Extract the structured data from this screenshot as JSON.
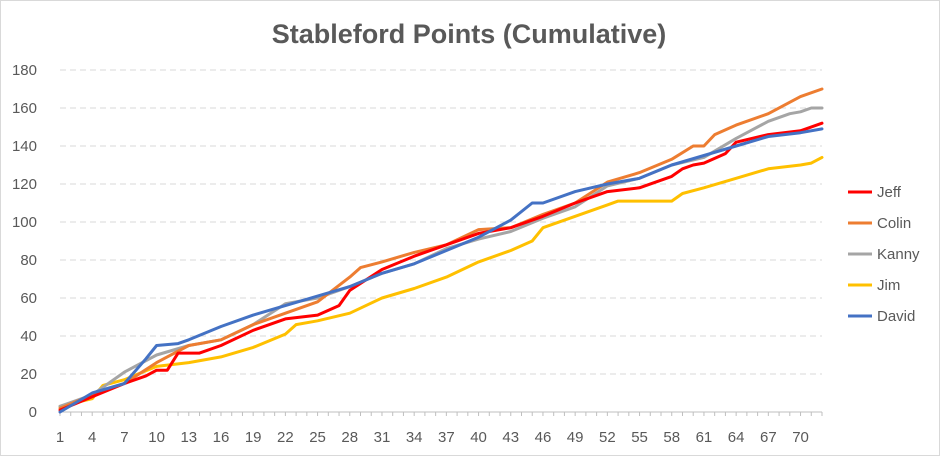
{
  "chart_data": {
    "type": "line",
    "title": "Stableford Points (Cumulative)",
    "xlabel": "",
    "ylabel": "",
    "ylim": [
      0,
      180
    ],
    "y_ticks": [
      0,
      20,
      40,
      60,
      80,
      100,
      120,
      140,
      160,
      180
    ],
    "x_range": [
      1,
      72
    ],
    "x_ticks": [
      1,
      4,
      7,
      10,
      13,
      16,
      19,
      22,
      25,
      28,
      31,
      34,
      37,
      40,
      43,
      46,
      49,
      52,
      55,
      58,
      61,
      64,
      67,
      70
    ],
    "grid": "horizontal dashed",
    "legend_position": "right",
    "series": [
      {
        "name": "Jeff",
        "color": "#ff0000",
        "x": [
          1,
          4,
          7,
          9,
          10,
          11,
          12,
          14,
          16,
          19,
          22,
          25,
          27,
          28,
          31,
          34,
          37,
          40,
          43,
          46,
          49,
          52,
          55,
          58,
          59,
          60,
          61,
          63,
          64,
          67,
          70,
          72
        ],
        "values": [
          1,
          8,
          15,
          19,
          22,
          22,
          31,
          31,
          35,
          43,
          49,
          51,
          56,
          64,
          75,
          82,
          88,
          94,
          97,
          103,
          110,
          116,
          118,
          124,
          128,
          130,
          131,
          136,
          142,
          146,
          148,
          152
        ]
      },
      {
        "name": "Colin",
        "color": "#ed7d31",
        "x": [
          1,
          4,
          7,
          10,
          13,
          16,
          19,
          22,
          25,
          28,
          29,
          31,
          34,
          37,
          40,
          43,
          46,
          49,
          52,
          55,
          58,
          60,
          61,
          62,
          64,
          67,
          70,
          72
        ],
        "values": [
          2,
          9,
          15,
          26,
          35,
          38,
          46,
          52,
          58,
          71,
          76,
          79,
          84,
          88,
          96,
          97,
          104,
          110,
          121,
          126,
          133,
          140,
          140,
          146,
          151,
          157,
          166,
          170
        ]
      },
      {
        "name": "Kanny",
        "color": "#a5a5a5",
        "x": [
          1,
          4,
          7,
          10,
          13,
          16,
          19,
          22,
          25,
          28,
          31,
          34,
          37,
          40,
          43,
          46,
          49,
          52,
          55,
          58,
          61,
          64,
          67,
          69,
          70,
          71,
          72
        ],
        "values": [
          3,
          9,
          21,
          30,
          35,
          38,
          46,
          57,
          60,
          66,
          73,
          78,
          86,
          91,
          95,
          102,
          108,
          119,
          123,
          130,
          134,
          144,
          153,
          157,
          158,
          160,
          160
        ]
      },
      {
        "name": "Jim",
        "color": "#ffc000",
        "x": [
          1,
          4,
          5,
          7,
          10,
          13,
          16,
          19,
          22,
          23,
          25,
          28,
          31,
          34,
          37,
          40,
          43,
          45,
          46,
          49,
          52,
          53,
          58,
          59,
          61,
          64,
          67,
          70,
          71,
          72
        ],
        "values": [
          3,
          7,
          14,
          17,
          24,
          26,
          29,
          34,
          41,
          46,
          48,
          52,
          60,
          65,
          71,
          79,
          85,
          90,
          97,
          103,
          109,
          111,
          111,
          115,
          118,
          123,
          128,
          130,
          131,
          134
        ]
      },
      {
        "name": "David",
        "color": "#4472c4",
        "x": [
          1,
          4,
          7,
          9,
          10,
          12,
          13,
          16,
          19,
          22,
          25,
          28,
          31,
          34,
          37,
          40,
          43,
          45,
          46,
          49,
          52,
          55,
          58,
          61,
          64,
          67,
          70,
          72
        ],
        "values": [
          0,
          10,
          15,
          28,
          35,
          36,
          38,
          45,
          51,
          56,
          61,
          66,
          73,
          78,
          85,
          92,
          101,
          110,
          110,
          116,
          120,
          123,
          130,
          135,
          140,
          145,
          147,
          149
        ]
      }
    ]
  }
}
